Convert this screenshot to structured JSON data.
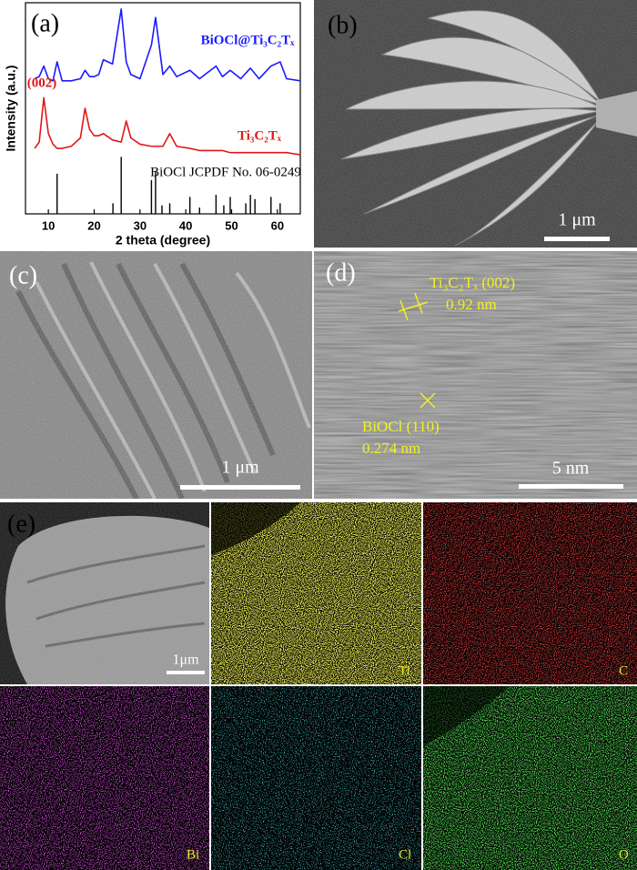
{
  "chart_data": {
    "type": "line",
    "panel_label": "(a)",
    "xlabel": "2 theta (degree)",
    "ylabel": "Intensity (a.u.)",
    "xlim": [
      5,
      65
    ],
    "xticks": [
      10,
      20,
      30,
      40,
      50,
      60
    ],
    "ylim": [
      0,
      100
    ],
    "x": [
      7,
      8,
      9,
      10,
      11,
      11.9,
      13,
      15,
      17,
      18,
      19,
      20,
      21,
      22,
      24,
      25.9,
      27,
      28,
      30,
      32.5,
      33.4,
      35,
      36.5,
      38,
      40.9,
      43,
      46.6,
      48,
      49.7,
      52,
      54.1,
      56,
      58.6,
      60.6,
      62,
      65
    ],
    "series": [
      {
        "name": "BiOCl@Ti₃C₂Tₓ",
        "color": "#1a1aff",
        "values": [
          64,
          65,
          70,
          64,
          63,
          72,
          63,
          63,
          64,
          68,
          65,
          65,
          66,
          73,
          71,
          97,
          72,
          66,
          64,
          80,
          93,
          66,
          70,
          65,
          68,
          64,
          70,
          65,
          68,
          64,
          69,
          64,
          70,
          72,
          64,
          63
        ]
      },
      {
        "name": "Ti₃C₂Tₓ",
        "color": "#e01818",
        "values": [
          31,
          34,
          55,
          38,
          33,
          31,
          31,
          32,
          36,
          50,
          40,
          37,
          37,
          38,
          35,
          34,
          44,
          36,
          33,
          32,
          32,
          32,
          38,
          32,
          31,
          30,
          30,
          30,
          29,
          29,
          29,
          29,
          29,
          29,
          29,
          28
        ]
      }
    ],
    "reference": {
      "name": "BiOCl JCPDF No. 06-0249",
      "color": "#000000",
      "x": [
        11.9,
        24.1,
        25.9,
        32.5,
        33.4,
        34.8,
        36.5,
        40.9,
        43.0,
        46.6,
        48.3,
        49.7,
        53.1,
        54.1,
        55.1,
        58.6,
        60.6
      ],
      "values": [
        19,
        5,
        27,
        16,
        20,
        4,
        5,
        8,
        3,
        9,
        4,
        8,
        5,
        9,
        7,
        8,
        5
      ]
    },
    "annotations": [
      "(002)"
    ]
  },
  "panels": {
    "b": {
      "label": "(b)",
      "scale_bar": "1 μm"
    },
    "c": {
      "label": "(c)",
      "scale_bar": "1 μm"
    },
    "d": {
      "label": "(d)",
      "fringe_1": "Ti₃C₂Tₓ (002)",
      "spacing_1": "0.92 nm",
      "fringe_2": "BiOCl (110)",
      "spacing_2": "0.274 nm",
      "scale_bar": "5 nm"
    },
    "e": {
      "label": "(e)",
      "scale_bar": "1μm",
      "maps": [
        "Ti",
        "C",
        "Bi",
        "Cl",
        "O"
      ]
    }
  }
}
